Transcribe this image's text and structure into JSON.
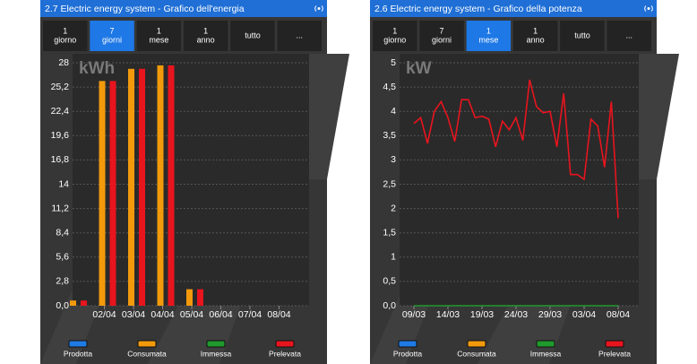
{
  "chart_data": [
    {
      "type": "bar",
      "header": "2.7 Electric energy system - Grafico dell'energia",
      "buttons": [
        {
          "top": "1",
          "bottom": "giorno"
        },
        {
          "top": "7",
          "bottom": "giorni"
        },
        {
          "top": "1",
          "bottom": "mese"
        },
        {
          "top": "1",
          "bottom": "anno"
        },
        {
          "top": "tutto"
        },
        {
          "top": "..."
        }
      ],
      "active_button": 1,
      "unit": "kWh",
      "categories": [
        null,
        "02/04",
        "03/04",
        "04/04",
        "05/04",
        "06/04",
        "07/04",
        "08/04"
      ],
      "series": [
        {
          "name": "Prodotta",
          "color": "#1e7be6",
          "values": [
            0,
            0,
            0,
            0,
            0,
            0,
            0,
            0
          ]
        },
        {
          "name": "Consumata",
          "color": "#f29a0c",
          "values": [
            0.6,
            25.9,
            27.3,
            27.7,
            1.9,
            0,
            0,
            0
          ]
        },
        {
          "name": "Immessa",
          "color": "#1f9a2c",
          "values": [
            0,
            0,
            0,
            0,
            0,
            0,
            0,
            0
          ]
        },
        {
          "name": "Prelevata",
          "color": "#e8141e",
          "values": [
            0.6,
            25.9,
            27.3,
            27.7,
            1.9,
            0,
            0,
            0
          ]
        }
      ],
      "ylim": [
        0,
        28
      ],
      "yticks": [
        {
          "value": 0,
          "label": "0,0"
        },
        {
          "value": 2.8,
          "label": "2,8"
        },
        {
          "value": 5.6,
          "label": "5,6"
        },
        {
          "value": 8.4,
          "label": "8,4"
        },
        {
          "value": 11.2,
          "label": "11,2"
        },
        14,
        {
          "value": 16.8,
          "label": "16,8"
        },
        {
          "value": 19.6,
          "label": "19,6"
        },
        {
          "value": 22.4,
          "label": "22,4"
        },
        {
          "value": 25.2,
          "label": "25,2"
        },
        28
      ],
      "grid": true
    },
    {
      "type": "line",
      "header": "2.6 Electric energy system - Grafico della potenza",
      "buttons": [
        {
          "top": "1",
          "bottom": "giorno"
        },
        {
          "top": "7",
          "bottom": "giorni"
        },
        {
          "top": "1",
          "bottom": "mese"
        },
        {
          "top": "1",
          "bottom": "anno"
        },
        {
          "top": "tutto"
        },
        {
          "top": "..."
        }
      ],
      "active_button": 2,
      "unit": "kW",
      "categories": [
        "09/03",
        null,
        null,
        null,
        null,
        "14/03",
        null,
        null,
        null,
        null,
        "19/03",
        null,
        null,
        null,
        null,
        "24/03",
        null,
        null,
        null,
        null,
        "29/03",
        null,
        null,
        null,
        null,
        "03/04",
        null,
        null,
        null,
        null,
        "08/04"
      ],
      "series": [
        {
          "name": "Prodotta",
          "color": "#1e7be6",
          "values": [
            null,
            null,
            null,
            null,
            null,
            null,
            null,
            null,
            null,
            null,
            null,
            null,
            null,
            null,
            null,
            null,
            null,
            null,
            null,
            null,
            null,
            null,
            null,
            null,
            null,
            null,
            null,
            null,
            null,
            null,
            null
          ]
        },
        {
          "name": "Consumata",
          "color": "#f29a0c",
          "values": [
            null,
            null,
            null,
            null,
            null,
            null,
            null,
            null,
            null,
            null,
            null,
            null,
            null,
            null,
            null,
            null,
            null,
            null,
            null,
            null,
            null,
            null,
            null,
            null,
            null,
            null,
            null,
            null,
            null,
            null,
            null
          ]
        },
        {
          "name": "Immessa",
          "color": "#1f9a2c",
          "values": [
            0,
            0,
            0,
            0,
            0,
            0,
            0,
            0,
            0,
            0,
            0,
            0,
            0,
            0,
            0,
            0,
            0,
            0,
            0,
            0,
            0,
            0,
            0,
            0,
            0,
            0,
            0,
            0,
            0,
            0,
            0
          ]
        },
        {
          "name": "Prelevata",
          "color": "#e8141e",
          "values": [
            3.75,
            3.87,
            3.34,
            4.0,
            4.2,
            3.87,
            3.38,
            4.24,
            4.24,
            3.87,
            3.9,
            3.84,
            3.27,
            3.8,
            3.62,
            3.87,
            3.4,
            4.65,
            4.1,
            3.97,
            4.0,
            3.27,
            4.37,
            2.7,
            2.7,
            2.6,
            3.84,
            3.7,
            2.85,
            4.2,
            1.8
          ]
        }
      ],
      "ylim": [
        0,
        5
      ],
      "yticks": [
        {
          "value": 0,
          "label": "0,0"
        },
        {
          "value": 0.5,
          "label": "0,5"
        },
        1,
        {
          "value": 1.5,
          "label": "1,5"
        },
        2,
        {
          "value": 2.5,
          "label": "2,5"
        },
        3,
        {
          "value": 3.5,
          "label": "3,5"
        },
        4,
        {
          "value": 4.5,
          "label": "4,5"
        },
        5
      ],
      "grid": true
    }
  ]
}
